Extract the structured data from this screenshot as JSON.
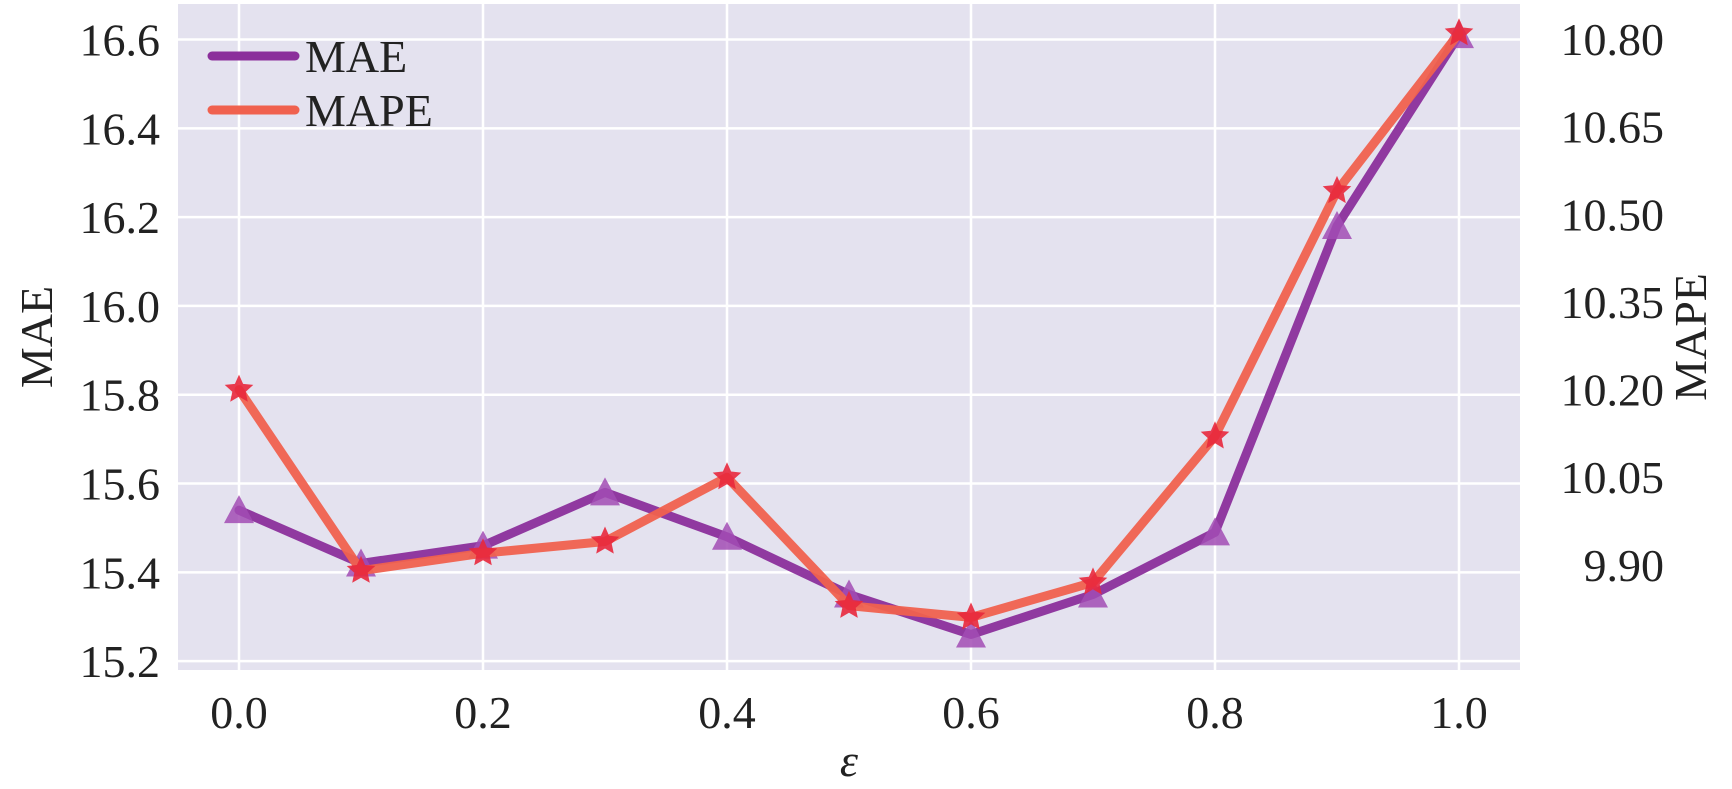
{
  "chart_data": {
    "type": "line",
    "x": [
      0.0,
      0.1,
      0.2,
      0.3,
      0.4,
      0.5,
      0.6,
      0.7,
      0.8,
      0.9,
      1.0
    ],
    "x_ticks": [
      0.0,
      0.2,
      0.4,
      0.6,
      0.8,
      1.0
    ],
    "x_tick_labels": [
      "0.0",
      "0.2",
      "0.4",
      "0.6",
      "0.8",
      "1.0"
    ],
    "xlim": [
      -0.05,
      1.05
    ],
    "xlabel": "ε",
    "ylabel_left": "MAE",
    "ylabel_right": "MAPE",
    "y_left_ticks": [
      15.2,
      15.4,
      15.6,
      15.8,
      16.0,
      16.2,
      16.4,
      16.6
    ],
    "y_left_tick_labels": [
      "15.2",
      "15.4",
      "15.6",
      "15.8",
      "16.0",
      "16.2",
      "16.4",
      "16.6"
    ],
    "ylim_left": [
      15.18,
      16.68
    ],
    "y_right_ticks": [
      9.9,
      10.05,
      10.2,
      10.35,
      10.5,
      10.65,
      10.8
    ],
    "y_right_tick_labels": [
      "9.90",
      "10.05",
      "10.20",
      "10.35",
      "10.50",
      "10.65",
      "10.80"
    ],
    "ylim_right": [
      9.72,
      10.86
    ],
    "grid": true,
    "legend_position": "top-left",
    "series": [
      {
        "name": "MAE",
        "axis": "left",
        "marker": "triangle",
        "color": "#8B2F9B",
        "marker_color": "#A24CB4",
        "values": [
          15.54,
          15.42,
          15.46,
          15.58,
          15.48,
          15.35,
          15.26,
          15.35,
          15.49,
          16.18,
          16.61
        ]
      },
      {
        "name": "MAPE",
        "axis": "right",
        "marker": "star",
        "color": "#F0614E",
        "marker_color": "#E8283C",
        "values": [
          10.2,
          9.89,
          9.92,
          9.94,
          10.05,
          9.83,
          9.81,
          9.87,
          10.12,
          10.54,
          10.81
        ]
      }
    ]
  },
  "colors": {
    "plot_background": "#E4E2EF",
    "grid": "#ffffff"
  }
}
